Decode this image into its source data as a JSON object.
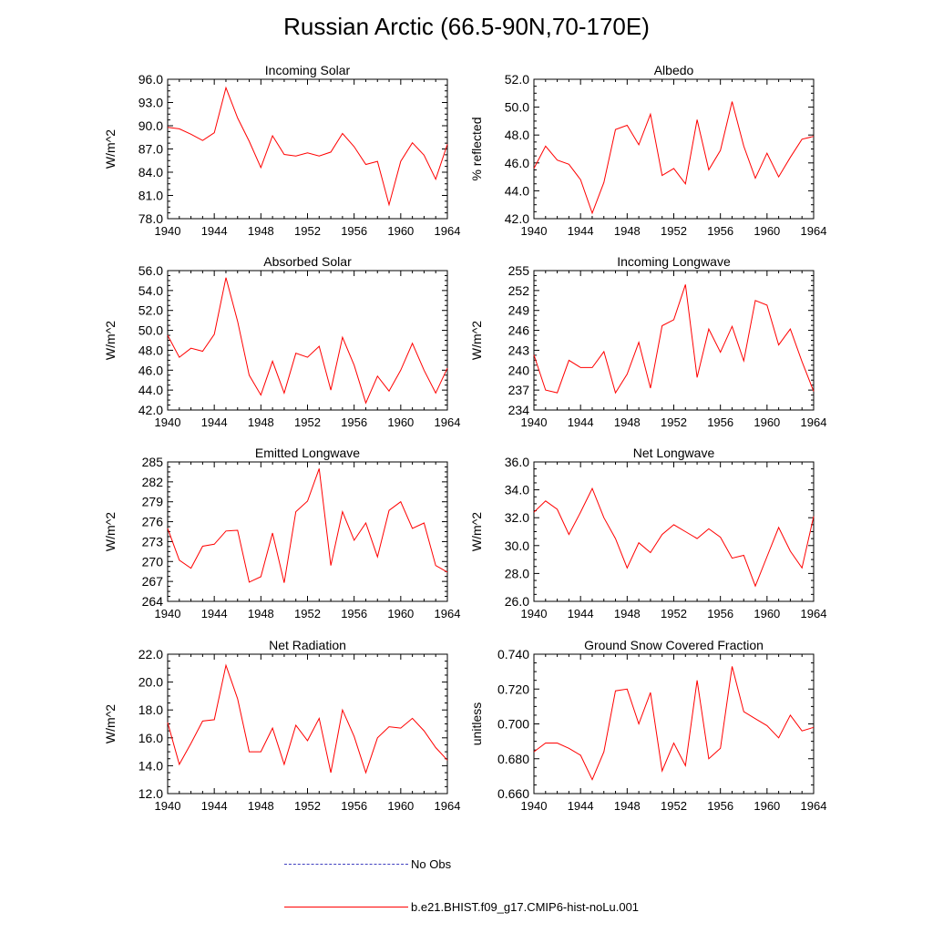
{
  "title": "Russian Arctic (66.5-90N,70-170E)",
  "legend": {
    "obs_label": "No Obs",
    "model_label": "b.e21.BHIST.f09_g17.CMIP6-hist-noLu.001",
    "obs_color": "#4040c0",
    "model_color": "#ff0000"
  },
  "chart_data": [
    {
      "type": "line",
      "title": "Incoming Solar",
      "ylabel": "W/m^2",
      "xlim": [
        1940,
        1964
      ],
      "ylim": [
        78.0,
        96.0
      ],
      "xticks": [
        "1940",
        "1944",
        "1948",
        "1952",
        "1956",
        "1960",
        "1964"
      ],
      "yticks": [
        "78.0",
        "81.0",
        "84.0",
        "87.0",
        "90.0",
        "93.0",
        "96.0"
      ],
      "series": [
        {
          "color": "#ff0000",
          "x": [
            1940,
            1941,
            1942,
            1943,
            1944,
            1945,
            1946,
            1947,
            1948,
            1949,
            1950,
            1951,
            1952,
            1953,
            1954,
            1955,
            1956,
            1957,
            1958,
            1959,
            1960,
            1961,
            1962,
            1963,
            1964
          ],
          "values": [
            89.8,
            89.6,
            88.9,
            88.1,
            89.1,
            94.9,
            91.0,
            88.0,
            84.6,
            88.7,
            86.3,
            86.1,
            86.5,
            86.1,
            86.6,
            89.0,
            87.3,
            85.0,
            85.4,
            79.8,
            85.4,
            87.8,
            86.2,
            83.1,
            87.6
          ]
        }
      ]
    },
    {
      "type": "line",
      "title": "Albedo",
      "ylabel": "% reflected",
      "xlim": [
        1940,
        1964
      ],
      "ylim": [
        42.0,
        52.0
      ],
      "xticks": [
        "1940",
        "1944",
        "1948",
        "1952",
        "1956",
        "1960",
        "1964"
      ],
      "yticks": [
        "42.0",
        "44.0",
        "46.0",
        "48.0",
        "50.0",
        "52.0"
      ],
      "series": [
        {
          "color": "#ff0000",
          "x": [
            1940,
            1941,
            1942,
            1943,
            1944,
            1945,
            1946,
            1947,
            1948,
            1949,
            1950,
            1951,
            1952,
            1953,
            1954,
            1955,
            1956,
            1957,
            1958,
            1959,
            1960,
            1961,
            1962,
            1963,
            1964
          ],
          "values": [
            45.6,
            47.2,
            46.2,
            45.9,
            44.8,
            42.4,
            44.6,
            48.4,
            48.7,
            47.3,
            49.5,
            45.1,
            45.6,
            44.5,
            49.1,
            45.5,
            46.9,
            50.4,
            47.2,
            44.9,
            46.7,
            45.0,
            46.4,
            47.7,
            47.9
          ]
        }
      ]
    },
    {
      "type": "line",
      "title": "Absorbed Solar",
      "ylabel": "W/m^2",
      "xlim": [
        1940,
        1964
      ],
      "ylim": [
        42.0,
        56.0
      ],
      "xticks": [
        "1940",
        "1944",
        "1948",
        "1952",
        "1956",
        "1960",
        "1964"
      ],
      "yticks": [
        "42.0",
        "44.0",
        "46.0",
        "48.0",
        "50.0",
        "52.0",
        "54.0",
        "56.0"
      ],
      "series": [
        {
          "color": "#ff0000",
          "x": [
            1940,
            1941,
            1942,
            1943,
            1944,
            1945,
            1946,
            1947,
            1948,
            1949,
            1950,
            1951,
            1952,
            1953,
            1954,
            1955,
            1956,
            1957,
            1958,
            1959,
            1960,
            1961,
            1962,
            1963,
            1964
          ],
          "values": [
            49.5,
            47.3,
            48.2,
            47.9,
            49.6,
            55.3,
            50.9,
            45.5,
            43.5,
            46.9,
            43.7,
            47.7,
            47.3,
            48.4,
            44.0,
            49.3,
            46.5,
            42.7,
            45.4,
            43.9,
            46.0,
            48.7,
            46.0,
            43.7,
            46.2
          ]
        }
      ]
    },
    {
      "type": "line",
      "title": "Incoming Longwave",
      "ylabel": "W/m^2",
      "xlim": [
        1940,
        1964
      ],
      "ylim": [
        234,
        255
      ],
      "xticks": [
        "1940",
        "1944",
        "1948",
        "1952",
        "1956",
        "1960",
        "1964"
      ],
      "yticks": [
        "234",
        "237",
        "240",
        "243",
        "246",
        "249",
        "252",
        "255"
      ],
      "series": [
        {
          "color": "#ff0000",
          "x": [
            1940,
            1941,
            1942,
            1943,
            1944,
            1945,
            1946,
            1947,
            1948,
            1949,
            1950,
            1951,
            1952,
            1953,
            1954,
            1955,
            1956,
            1957,
            1958,
            1959,
            1960,
            1961,
            1962,
            1963,
            1964
          ],
          "values": [
            242.3,
            237.0,
            236.6,
            241.5,
            240.4,
            240.4,
            242.8,
            236.6,
            239.4,
            244.2,
            237.3,
            246.7,
            247.6,
            252.9,
            238.9,
            246.2,
            242.7,
            246.6,
            241.4,
            250.5,
            249.8,
            243.8,
            246.2,
            241.3,
            236.8
          ]
        }
      ]
    },
    {
      "type": "line",
      "title": "Emitted Longwave",
      "ylabel": "W/m^2",
      "xlim": [
        1940,
        1964
      ],
      "ylim": [
        264,
        285
      ],
      "xticks": [
        "1940",
        "1944",
        "1948",
        "1952",
        "1956",
        "1960",
        "1964"
      ],
      "yticks": [
        "264",
        "267",
        "270",
        "273",
        "276",
        "279",
        "282",
        "285"
      ],
      "series": [
        {
          "color": "#ff0000",
          "x": [
            1940,
            1941,
            1942,
            1943,
            1944,
            1945,
            1946,
            1947,
            1948,
            1949,
            1950,
            1951,
            1952,
            1953,
            1954,
            1955,
            1956,
            1957,
            1958,
            1959,
            1960,
            1961,
            1962,
            1963,
            1964
          ],
          "values": [
            275.0,
            270.2,
            269.0,
            272.3,
            272.6,
            274.6,
            274.7,
            266.9,
            267.7,
            274.3,
            266.8,
            277.5,
            279.1,
            284.0,
            269.4,
            277.5,
            273.2,
            275.8,
            270.7,
            277.7,
            279.0,
            275.0,
            275.8,
            269.4,
            268.4
          ]
        }
      ]
    },
    {
      "type": "line",
      "title": "Net Longwave",
      "ylabel": "W/m^2",
      "xlim": [
        1940,
        1964
      ],
      "ylim": [
        26.0,
        36.0
      ],
      "xticks": [
        "1940",
        "1944",
        "1948",
        "1952",
        "1956",
        "1960",
        "1964"
      ],
      "yticks": [
        "26.0",
        "28.0",
        "30.0",
        "32.0",
        "34.0",
        "36.0"
      ],
      "series": [
        {
          "color": "#ff0000",
          "x": [
            1940,
            1941,
            1942,
            1943,
            1944,
            1945,
            1946,
            1947,
            1948,
            1949,
            1950,
            1951,
            1952,
            1953,
            1954,
            1955,
            1956,
            1957,
            1958,
            1959,
            1960,
            1961,
            1962,
            1963,
            1964
          ],
          "values": [
            32.4,
            33.2,
            32.6,
            30.8,
            32.4,
            34.1,
            32.0,
            30.5,
            28.4,
            30.2,
            29.5,
            30.8,
            31.5,
            31.0,
            30.5,
            31.2,
            30.6,
            29.1,
            29.3,
            27.1,
            29.2,
            31.3,
            29.6,
            28.4,
            32.1
          ]
        }
      ]
    },
    {
      "type": "line",
      "title": "Net Radiation",
      "ylabel": "W/m^2",
      "xlim": [
        1940,
        1964
      ],
      "ylim": [
        12.0,
        22.0
      ],
      "xticks": [
        "1940",
        "1944",
        "1948",
        "1952",
        "1956",
        "1960",
        "1964"
      ],
      "yticks": [
        "12.0",
        "14.0",
        "16.0",
        "18.0",
        "20.0",
        "22.0"
      ],
      "series": [
        {
          "color": "#ff0000",
          "x": [
            1940,
            1941,
            1942,
            1943,
            1944,
            1945,
            1946,
            1947,
            1948,
            1949,
            1950,
            1951,
            1952,
            1953,
            1954,
            1955,
            1956,
            1957,
            1958,
            1959,
            1960,
            1961,
            1962,
            1963,
            1964
          ],
          "values": [
            17.1,
            14.1,
            15.6,
            17.2,
            17.3,
            21.2,
            18.8,
            15.0,
            15.0,
            16.7,
            14.1,
            16.9,
            15.8,
            17.4,
            13.5,
            18.0,
            16.1,
            13.5,
            16.0,
            16.8,
            16.7,
            17.4,
            16.5,
            15.3,
            14.4
          ]
        }
      ]
    },
    {
      "type": "line",
      "title": "Ground Snow Covered Fraction",
      "ylabel": "unitless",
      "xlim": [
        1940,
        1964
      ],
      "ylim": [
        0.66,
        0.74
      ],
      "xticks": [
        "1940",
        "1944",
        "1948",
        "1952",
        "1956",
        "1960",
        "1964"
      ],
      "yticks": [
        "0.660",
        "0.680",
        "0.700",
        "0.720",
        "0.740"
      ],
      "series": [
        {
          "color": "#ff0000",
          "x": [
            1940,
            1941,
            1942,
            1943,
            1944,
            1945,
            1946,
            1947,
            1948,
            1949,
            1950,
            1951,
            1952,
            1953,
            1954,
            1955,
            1956,
            1957,
            1958,
            1959,
            1960,
            1961,
            1962,
            1963,
            1964
          ],
          "values": [
            0.684,
            0.689,
            0.689,
            0.686,
            0.682,
            0.668,
            0.684,
            0.719,
            0.72,
            0.7,
            0.718,
            0.673,
            0.689,
            0.676,
            0.725,
            0.68,
            0.686,
            0.733,
            0.707,
            0.703,
            0.699,
            0.692,
            0.705,
            0.696,
            0.698
          ]
        }
      ]
    }
  ]
}
